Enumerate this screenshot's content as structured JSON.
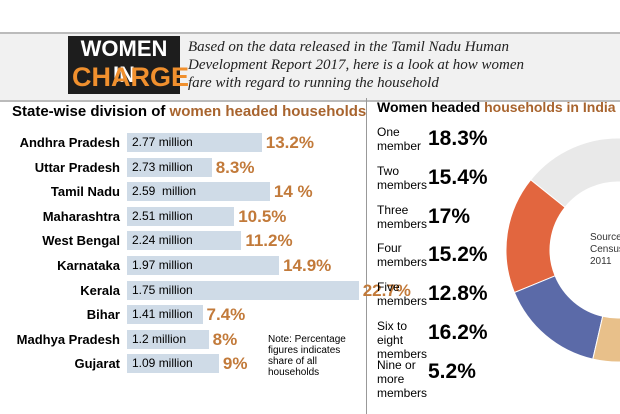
{
  "header": {
    "title_line1": "WOMEN IN",
    "title_line2": "CHARGE",
    "description": "Based on the data released in the Tamil Nadu Human Development Report 2017, here is a look at how women fare with regard to running the household"
  },
  "chart_data": [
    {
      "type": "bar",
      "title": "State-wise division of",
      "title_highlight": "women headed households",
      "categories": [
        "Andhra Pradesh",
        "Uttar Pradesh",
        "Tamil Nadu",
        "Maharashtra",
        "West Bengal",
        "Karnataka",
        "Kerala",
        "Bihar",
        "Madhya Pradesh",
        "Gujarat"
      ],
      "values": [
        13.2,
        8.3,
        14,
        10.5,
        11.2,
        14.9,
        22.7,
        7.4,
        8,
        9
      ],
      "value_labels": [
        "13.2%",
        "8.3%",
        "14 %",
        "10.5%",
        "11.2%",
        "14.9%",
        "22.7%",
        "7.4%",
        "8%",
        "9%"
      ],
      "households": [
        "2.77 million",
        "2.73 million",
        "2.59  million",
        "2.51 million",
        "2.24 million",
        "1.97 million",
        "1.75 million",
        "1.41 million",
        "1.2 million",
        "1.09 million"
      ],
      "color": "#cfdbe7",
      "label_color": "#c27a3a",
      "xlim": [
        0,
        24
      ],
      "note": "Note: Percentage figures indicates share of all households"
    },
    {
      "type": "pie",
      "title": "Women headed",
      "title_highlight": "households in India",
      "categories": [
        "One member",
        "Two members",
        "Three members",
        "Four members",
        "Five members",
        "Six to eight members",
        "Nine or more members"
      ],
      "values": [
        18.3,
        15.4,
        17,
        15.2,
        12.8,
        16.2,
        5.2
      ],
      "value_labels": [
        "18.3%",
        "15.4%",
        "17%",
        "15.2%",
        "12.8%",
        "16.2%",
        "5.2%"
      ],
      "colors": [
        "#7f9fcb",
        "#e9e9e9",
        "#e2663f",
        "#5b6aa8",
        "#e8c08a",
        "#bfb9a6",
        "#5e5e5e"
      ],
      "source": "Source: Census 2011",
      "donut": true
    }
  ]
}
